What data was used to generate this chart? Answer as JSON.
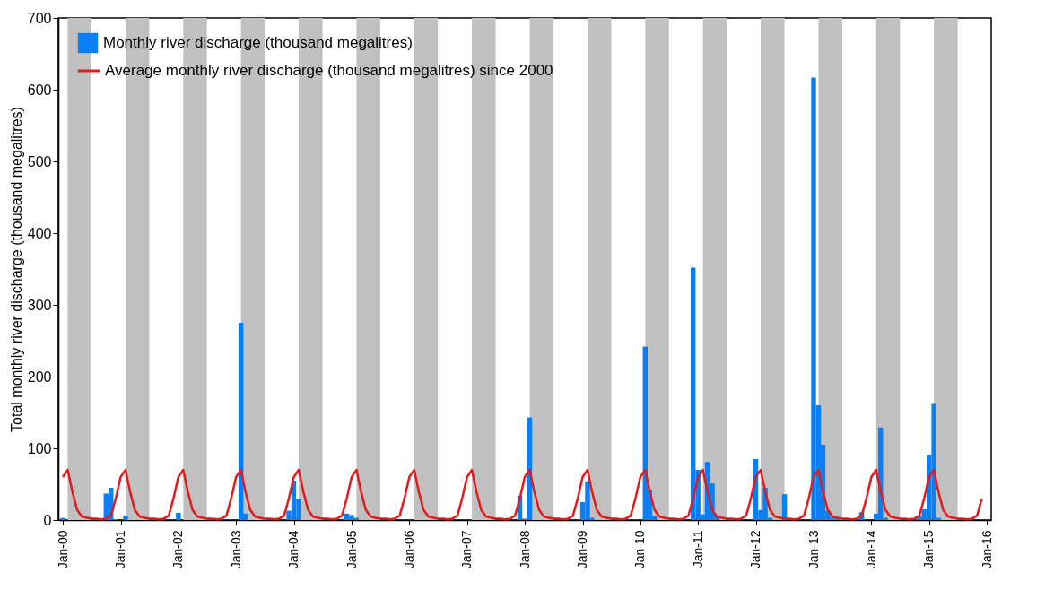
{
  "chart_data": {
    "type": "bar",
    "ylabel": "Total monthly river discharge (thousand megalitres)",
    "x": [
      "2000-01",
      "2000-02",
      "2000-03",
      "2000-04",
      "2000-05",
      "2000-06",
      "2000-07",
      "2000-08",
      "2000-09",
      "2000-10",
      "2000-11",
      "2000-12",
      "2001-01",
      "2001-02",
      "2001-03",
      "2001-04",
      "2001-05",
      "2001-06",
      "2001-07",
      "2001-08",
      "2001-09",
      "2001-10",
      "2001-11",
      "2001-12",
      "2002-01",
      "2002-02",
      "2002-03",
      "2002-04",
      "2002-05",
      "2002-06",
      "2002-07",
      "2002-08",
      "2002-09",
      "2002-10",
      "2002-11",
      "2002-12",
      "2003-01",
      "2003-02",
      "2003-03",
      "2003-04",
      "2003-05",
      "2003-06",
      "2003-07",
      "2003-08",
      "2003-09",
      "2003-10",
      "2003-11",
      "2003-12",
      "2004-01",
      "2004-02",
      "2004-03",
      "2004-04",
      "2004-05",
      "2004-06",
      "2004-07",
      "2004-08",
      "2004-09",
      "2004-10",
      "2004-11",
      "2004-12",
      "2005-01",
      "2005-02",
      "2005-03",
      "2005-04",
      "2005-05",
      "2005-06",
      "2005-07",
      "2005-08",
      "2005-09",
      "2005-10",
      "2005-11",
      "2005-12",
      "2006-01",
      "2006-02",
      "2006-03",
      "2006-04",
      "2006-05",
      "2006-06",
      "2006-07",
      "2006-08",
      "2006-09",
      "2006-10",
      "2006-11",
      "2006-12",
      "2007-01",
      "2007-02",
      "2007-03",
      "2007-04",
      "2007-05",
      "2007-06",
      "2007-07",
      "2007-08",
      "2007-09",
      "2007-10",
      "2007-11",
      "2007-12",
      "2008-01",
      "2008-02",
      "2008-03",
      "2008-04",
      "2008-05",
      "2008-06",
      "2008-07",
      "2008-08",
      "2008-09",
      "2008-10",
      "2008-11",
      "2008-12",
      "2009-01",
      "2009-02",
      "2009-03",
      "2009-04",
      "2009-05",
      "2009-06",
      "2009-07",
      "2009-08",
      "2009-09",
      "2009-10",
      "2009-11",
      "2009-12",
      "2010-01",
      "2010-02",
      "2010-03",
      "2010-04",
      "2010-05",
      "2010-06",
      "2010-07",
      "2010-08",
      "2010-09",
      "2010-10",
      "2010-11",
      "2010-12",
      "2011-01",
      "2011-02",
      "2011-03",
      "2011-04",
      "2011-05",
      "2011-06",
      "2011-07",
      "2011-08",
      "2011-09",
      "2011-10",
      "2011-11",
      "2011-12",
      "2012-01",
      "2012-02",
      "2012-03",
      "2012-04",
      "2012-05",
      "2012-06",
      "2012-07",
      "2012-08",
      "2012-09",
      "2012-10",
      "2012-11",
      "2012-12",
      "2013-01",
      "2013-02",
      "2013-03",
      "2013-04",
      "2013-05",
      "2013-06",
      "2013-07",
      "2013-08",
      "2013-09",
      "2013-10",
      "2013-11",
      "2013-12",
      "2014-01",
      "2014-02",
      "2014-03",
      "2014-04",
      "2014-05",
      "2014-06",
      "2014-07",
      "2014-08",
      "2014-09",
      "2014-10",
      "2014-11",
      "2014-12",
      "2015-01",
      "2015-02",
      "2015-03",
      "2015-04",
      "2015-05",
      "2015-06",
      "2015-07",
      "2015-08",
      "2015-09",
      "2015-10",
      "2015-11",
      "2015-12"
    ],
    "series": [
      {
        "name": "Monthly river discharge (thousand megalitres)",
        "color": "#0a7ff5",
        "values": [
          3,
          0,
          0,
          0,
          0,
          0,
          0,
          0,
          0,
          37,
          45,
          1,
          0,
          6,
          0,
          0,
          0,
          0,
          0,
          0,
          0,
          0,
          0,
          0,
          10,
          0,
          0,
          0,
          0,
          0,
          0,
          0,
          0,
          0,
          0,
          0,
          0,
          275,
          9,
          0,
          0,
          0,
          0,
          0,
          0,
          0,
          0,
          13,
          55,
          30,
          0,
          0,
          0,
          0,
          0,
          0,
          0,
          0,
          0,
          9,
          7,
          3,
          0,
          0,
          0,
          0,
          0,
          0,
          0,
          0,
          0,
          null,
          0,
          0,
          0,
          0,
          0,
          null,
          0,
          0,
          0,
          0,
          0,
          0,
          0,
          null,
          0,
          0,
          0,
          0,
          0,
          0,
          0,
          0,
          0,
          34,
          2,
          143,
          0,
          0,
          0,
          0,
          0,
          0,
          0,
          0,
          0,
          0,
          25,
          54,
          3,
          0,
          0,
          0,
          0,
          0,
          0,
          0,
          0,
          0,
          0,
          242,
          42,
          5,
          0,
          0,
          0,
          0,
          null,
          null,
          null,
          352,
          70,
          8,
          81,
          51,
          6,
          null,
          null,
          0,
          0,
          0,
          0,
          null,
          85,
          14,
          45,
          3,
          0,
          0,
          36,
          0,
          0,
          0,
          0,
          0,
          617,
          160,
          105,
          13,
          4,
          2,
          0,
          0,
          0,
          0,
          11,
          0,
          0,
          9,
          129,
          3,
          0,
          0,
          0,
          0,
          0,
          0,
          5,
          15,
          90,
          162,
          3,
          0,
          0,
          0,
          0,
          0,
          0,
          0,
          0,
          0
        ]
      },
      {
        "name": "Average monthly river discharge (thousand megalitres) since 2000",
        "type": "line",
        "color": "#e31a1c",
        "values": [
          60,
          70,
          40,
          14,
          5,
          3,
          2,
          2,
          1,
          2,
          6,
          30,
          60,
          70,
          40,
          14,
          5,
          3,
          2,
          2,
          1,
          2,
          6,
          30,
          60,
          70,
          40,
          14,
          5,
          3,
          2,
          2,
          1,
          2,
          6,
          30,
          60,
          70,
          40,
          14,
          5,
          3,
          2,
          2,
          1,
          2,
          6,
          30,
          60,
          70,
          40,
          14,
          5,
          3,
          2,
          2,
          1,
          2,
          6,
          30,
          60,
          70,
          40,
          14,
          5,
          3,
          2,
          2,
          1,
          2,
          6,
          30,
          60,
          70,
          40,
          14,
          5,
          3,
          2,
          2,
          1,
          2,
          6,
          30,
          60,
          70,
          40,
          14,
          5,
          3,
          2,
          2,
          1,
          2,
          6,
          30,
          60,
          70,
          40,
          14,
          5,
          3,
          2,
          2,
          1,
          2,
          6,
          30,
          60,
          70,
          40,
          14,
          5,
          3,
          2,
          2,
          1,
          2,
          6,
          30,
          60,
          70,
          40,
          14,
          5,
          3,
          2,
          2,
          1,
          2,
          6,
          30,
          60,
          70,
          40,
          14,
          5,
          3,
          2,
          2,
          1,
          2,
          6,
          30,
          60,
          70,
          40,
          14,
          5,
          3,
          2,
          2,
          1,
          2,
          6,
          30,
          60,
          70,
          40,
          14,
          5,
          3,
          2,
          2,
          1,
          2,
          6,
          30,
          60,
          70,
          40,
          14,
          5,
          3,
          2,
          2,
          1,
          2,
          6,
          30,
          60,
          70,
          40,
          14,
          5,
          3,
          2,
          2,
          1,
          2,
          6,
          30
        ]
      }
    ],
    "bands": [
      {
        "axis": "x",
        "from": "2000-02",
        "to": "2000-07",
        "color": "#c0c0c0"
      },
      {
        "axis": "x",
        "from": "2001-02",
        "to": "2001-07",
        "color": "#c0c0c0"
      },
      {
        "axis": "x",
        "from": "2002-02",
        "to": "2002-07",
        "color": "#c0c0c0"
      },
      {
        "axis": "x",
        "from": "2003-02",
        "to": "2003-07",
        "color": "#c0c0c0"
      },
      {
        "axis": "x",
        "from": "2004-02",
        "to": "2004-07",
        "color": "#c0c0c0"
      },
      {
        "axis": "x",
        "from": "2005-02",
        "to": "2005-07",
        "color": "#c0c0c0"
      },
      {
        "axis": "x",
        "from": "2006-02",
        "to": "2006-07",
        "color": "#c0c0c0"
      },
      {
        "axis": "x",
        "from": "2007-02",
        "to": "2007-07",
        "color": "#c0c0c0"
      },
      {
        "axis": "x",
        "from": "2008-02",
        "to": "2008-07",
        "color": "#c0c0c0"
      },
      {
        "axis": "x",
        "from": "2009-02",
        "to": "2009-07",
        "color": "#c0c0c0"
      },
      {
        "axis": "x",
        "from": "2010-02",
        "to": "2010-07",
        "color": "#c0c0c0"
      },
      {
        "axis": "x",
        "from": "2011-02",
        "to": "2011-07",
        "color": "#c0c0c0"
      },
      {
        "axis": "x",
        "from": "2012-02",
        "to": "2012-07",
        "color": "#c0c0c0"
      },
      {
        "axis": "x",
        "from": "2013-02",
        "to": "2013-07",
        "color": "#c0c0c0"
      },
      {
        "axis": "x",
        "from": "2014-02",
        "to": "2014-07",
        "color": "#c0c0c0"
      },
      {
        "axis": "x",
        "from": "2015-02",
        "to": "2015-07",
        "color": "#c0c0c0"
      }
    ],
    "xlim": [
      "2000-01",
      "2016-01"
    ],
    "xticks": [
      {
        "value": "2000-01",
        "label": "Jan-00"
      },
      {
        "value": "2001-01",
        "label": "Jan-01"
      },
      {
        "value": "2002-01",
        "label": "Jan-02"
      },
      {
        "value": "2003-01",
        "label": "Jan-03"
      },
      {
        "value": "2004-01",
        "label": "Jan-04"
      },
      {
        "value": "2005-01",
        "label": "Jan-05"
      },
      {
        "value": "2006-01",
        "label": "Jan-06"
      },
      {
        "value": "2007-01",
        "label": "Jan-07"
      },
      {
        "value": "2008-01",
        "label": "Jan-08"
      },
      {
        "value": "2009-01",
        "label": "Jan-09"
      },
      {
        "value": "2010-01",
        "label": "Jan-10"
      },
      {
        "value": "2011-01",
        "label": "Jan-11"
      },
      {
        "value": "2012-01",
        "label": "Jan-12"
      },
      {
        "value": "2013-01",
        "label": "Jan-13"
      },
      {
        "value": "2014-01",
        "label": "Jan-14"
      },
      {
        "value": "2015-01",
        "label": "Jan-15"
      },
      {
        "value": "2016-01",
        "label": "Jan-16"
      }
    ],
    "ylim": [
      0,
      700
    ],
    "yticks": [
      0,
      100,
      200,
      300,
      400,
      500,
      600,
      700
    ],
    "grid": false,
    "legend": "top left",
    "marker": "none",
    "line_style": "solid"
  }
}
